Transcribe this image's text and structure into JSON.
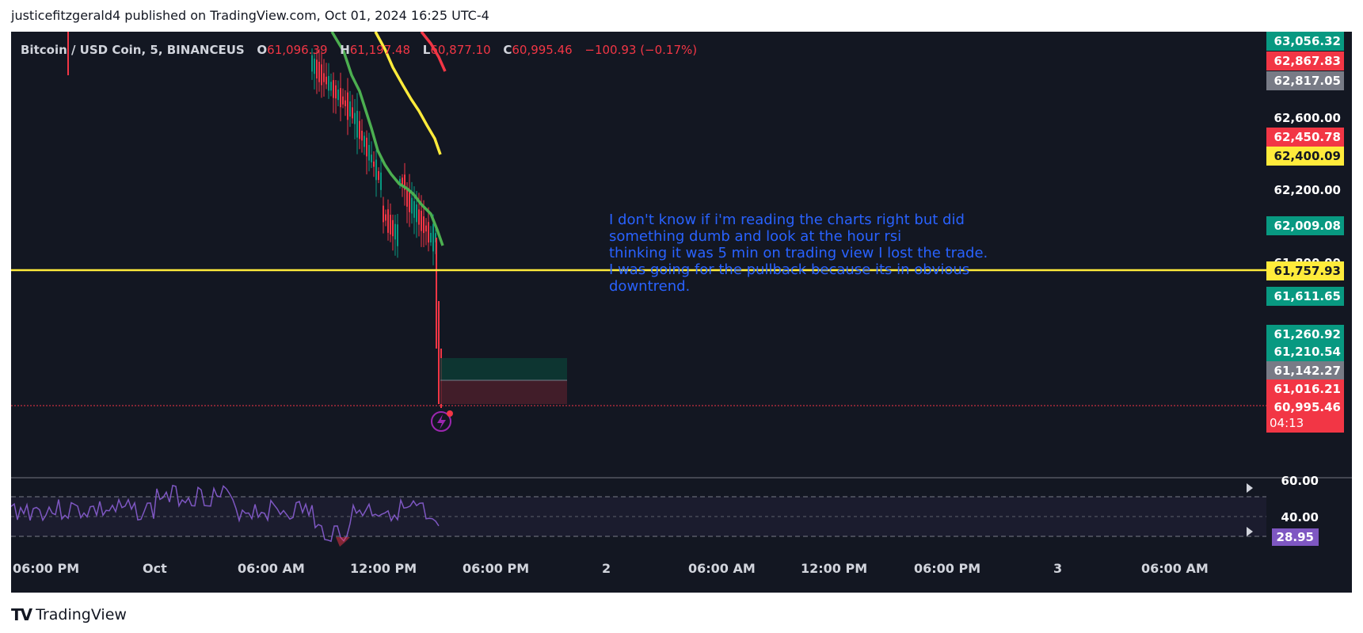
{
  "header": {
    "text": "justicefitzgerald4 published on TradingView.com, Oct 01, 2024 16:25 UTC-4"
  },
  "symbol": {
    "name": "Bitcoin / USD Coin, 5, BINANCEUS",
    "open_k": "O",
    "open_v": "61,096.39",
    "high_k": "H",
    "high_v": "61,197.48",
    "low_k": "L",
    "low_v": "60,877.10",
    "close_k": "C",
    "close_v": "60,995.46",
    "change": "−100.93 (−0.17%)"
  },
  "note": "I don't know if i'm reading the charts right but did\nsomething dumb and look at the hour rsi\nthinking it was 5 min on trading view I lost the trade.\nI was going for the pullback because its in obvious\ndowntrend.",
  "price_axis": {
    "plain_ticks": [
      "62,600.00",
      "62,200.00",
      "61,800.00"
    ],
    "labels": [
      {
        "text": "63,056.32",
        "color": "#089981"
      },
      {
        "text": "62,867.83",
        "color": "#f23645"
      },
      {
        "text": "62,817.05",
        "color": "#787b86"
      },
      {
        "text": "62,450.78",
        "color": "#f23645"
      },
      {
        "text": "62,400.09",
        "color": "#ffeb3b"
      },
      {
        "text": "62,009.08",
        "color": "#089981"
      },
      {
        "text": "61,757.93",
        "color": "#ffeb3b"
      },
      {
        "text": "61,611.65",
        "color": "#089981"
      },
      {
        "text": "61,260.92",
        "color": "#089981"
      },
      {
        "text": "61,210.54",
        "color": "#089981"
      },
      {
        "text": "61,142.27",
        "color": "#787b86"
      },
      {
        "text": "61,016.21",
        "color": "#f23645"
      },
      {
        "text": "60,995.46",
        "color": "#f23645"
      },
      {
        "text": "04:13",
        "color": "#f23645"
      }
    ]
  },
  "rsi": {
    "upper": "60.00",
    "lower": "40.00",
    "value": "28.95",
    "color": "#7e57c2"
  },
  "time_axis": [
    "06:00 PM",
    "Oct",
    "06:00 AM",
    "12:00 PM",
    "06:00 PM",
    "2",
    "06:00 AM",
    "12:00 PM",
    "06:00 PM",
    "3",
    "06:00 AM"
  ],
  "footer": {
    "logo": "TV",
    "brand": "TradingView"
  }
}
